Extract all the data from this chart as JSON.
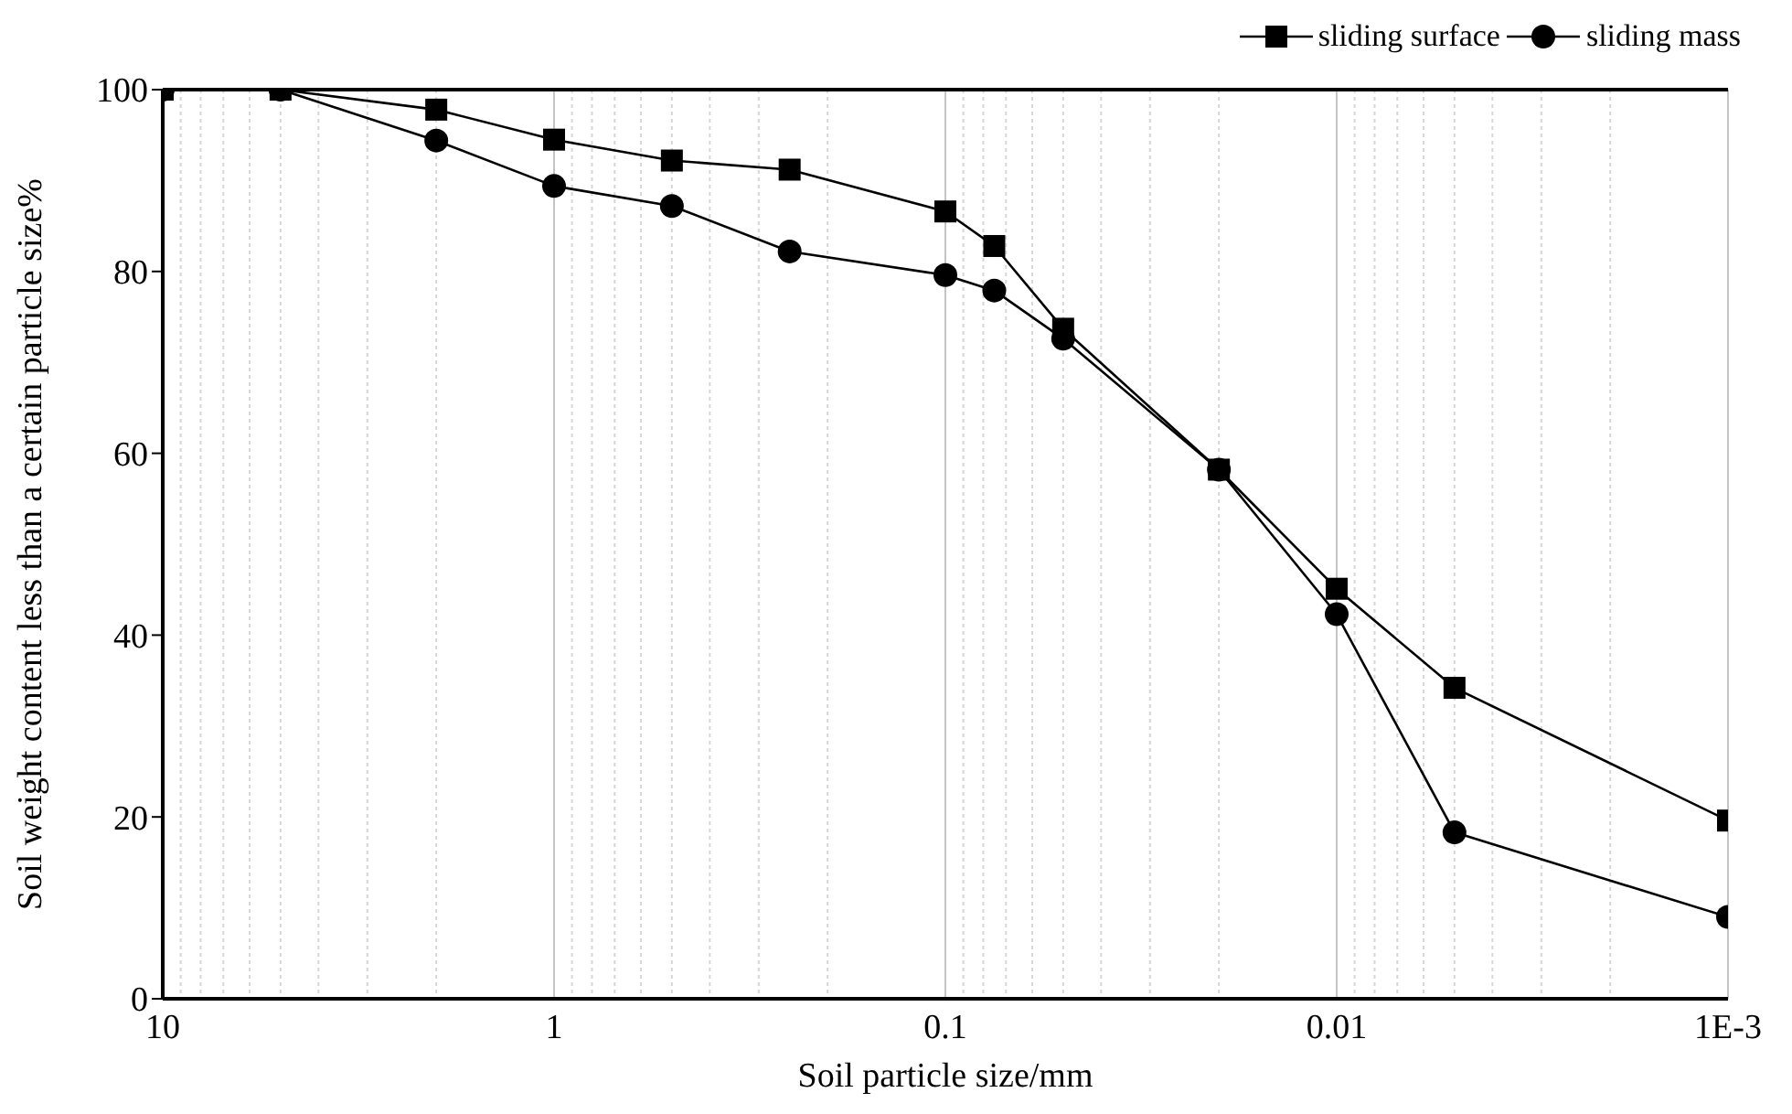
{
  "chart_data": {
    "type": "line",
    "xlabel": "Soil particle size/mm",
    "ylabel": "Soil weight content less than a certain particle size%",
    "x": [
      10,
      5,
      2,
      1,
      0.5,
      0.25,
      0.1,
      0.075,
      0.05,
      0.02,
      0.01,
      0.005,
      0.001
    ],
    "series": [
      {
        "name": "sliding surface",
        "color": "#000000",
        "marker": "square",
        "values": [
          100,
          100,
          97.8,
          94.5,
          92.2,
          91.2,
          86.6,
          82.8,
          73.7,
          58.2,
          45.1,
          34.2,
          19.6
        ]
      },
      {
        "name": "sliding mass",
        "color": "#000000",
        "marker": "circle",
        "values": [
          100,
          100,
          94.4,
          89.4,
          87.2,
          82.2,
          79.6,
          77.9,
          72.6,
          58.2,
          42.3,
          18.3,
          9.0
        ]
      }
    ],
    "log": "x",
    "xlim": [
      10,
      0.001
    ],
    "xticks": [
      10,
      1,
      0.1,
      0.01,
      {
        "value": 0.001,
        "label": "1E-3"
      }
    ],
    "ylim": [
      0,
      100
    ],
    "yticks": [
      0,
      20,
      40,
      60,
      80,
      100
    ],
    "grid": "x",
    "legend": "top right",
    "line_style": "solid"
  }
}
